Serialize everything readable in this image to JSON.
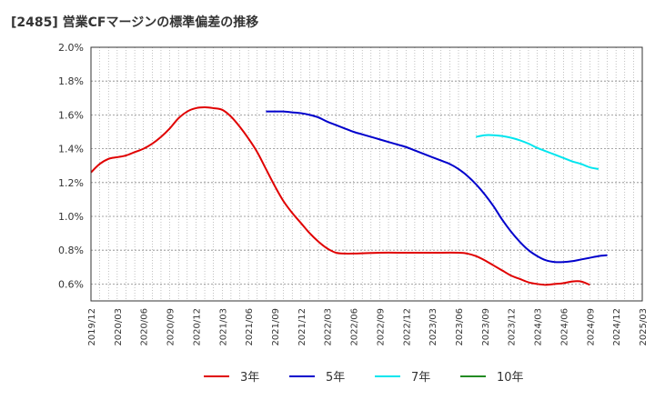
{
  "chart_data": {
    "type": "line",
    "title": "[2485]  営業CFマージンの標準偏差の推移",
    "xlabel": "",
    "ylabel": "",
    "ylim": [
      0.5,
      2.0
    ],
    "grid": true,
    "legend_position": "bottom",
    "y_ticks": [
      "0.6%",
      "0.8%",
      "1.0%",
      "1.2%",
      "1.4%",
      "1.6%",
      "1.8%",
      "2.0%"
    ],
    "x_ticks": [
      "2019/12",
      "2020/03",
      "2020/06",
      "2020/09",
      "2020/12",
      "2021/03",
      "2021/06",
      "2021/09",
      "2021/12",
      "2022/03",
      "2022/06",
      "2022/09",
      "2022/12",
      "2023/03",
      "2023/06",
      "2023/09",
      "2023/12",
      "2024/03",
      "2024/06",
      "2024/09",
      "2024/12",
      "2025/03"
    ],
    "series": [
      {
        "name": "3年",
        "color": "#e00000",
        "points": [
          [
            "2019/12",
            1.26
          ],
          [
            "2020/01",
            1.31
          ],
          [
            "2020/02",
            1.34
          ],
          [
            "2020/03",
            1.35
          ],
          [
            "2020/04",
            1.36
          ],
          [
            "2020/05",
            1.38
          ],
          [
            "2020/06",
            1.4
          ],
          [
            "2020/07",
            1.43
          ],
          [
            "2020/08",
            1.47
          ],
          [
            "2020/09",
            1.52
          ],
          [
            "2020/10",
            1.58
          ],
          [
            "2020/11",
            1.62
          ],
          [
            "2020/12",
            1.64
          ],
          [
            "2021/01",
            1.645
          ],
          [
            "2021/02",
            1.64
          ],
          [
            "2021/03",
            1.63
          ],
          [
            "2021/04",
            1.59
          ],
          [
            "2021/05",
            1.53
          ],
          [
            "2021/06",
            1.46
          ],
          [
            "2021/07",
            1.38
          ],
          [
            "2021/08",
            1.28
          ],
          [
            "2021/09",
            1.18
          ],
          [
            "2021/10",
            1.09
          ],
          [
            "2021/11",
            1.02
          ],
          [
            "2021/12",
            0.96
          ],
          [
            "2022/01",
            0.9
          ],
          [
            "2022/02",
            0.85
          ],
          [
            "2022/03",
            0.81
          ],
          [
            "2022/04",
            0.785
          ],
          [
            "2022/05",
            0.78
          ],
          [
            "2022/06",
            0.78
          ],
          [
            "2022/09",
            0.785
          ],
          [
            "2022/12",
            0.785
          ],
          [
            "2023/03",
            0.785
          ],
          [
            "2023/06",
            0.785
          ],
          [
            "2023/07",
            0.78
          ],
          [
            "2023/08",
            0.765
          ],
          [
            "2023/09",
            0.74
          ],
          [
            "2023/10",
            0.71
          ],
          [
            "2023/11",
            0.68
          ],
          [
            "2023/12",
            0.65
          ],
          [
            "2024/01",
            0.63
          ],
          [
            "2024/02",
            0.61
          ],
          [
            "2024/03",
            0.6
          ],
          [
            "2024/04",
            0.595
          ],
          [
            "2024/05",
            0.6
          ],
          [
            "2024/06",
            0.605
          ],
          [
            "2024/07",
            0.615
          ],
          [
            "2024/08",
            0.615
          ],
          [
            "2024/09",
            0.595
          ]
        ]
      },
      {
        "name": "5年",
        "color": "#0000cc",
        "points": [
          [
            "2021/08",
            1.62
          ],
          [
            "2021/09",
            1.62
          ],
          [
            "2021/10",
            1.62
          ],
          [
            "2021/11",
            1.615
          ],
          [
            "2021/12",
            1.61
          ],
          [
            "2022/01",
            1.6
          ],
          [
            "2022/02",
            1.585
          ],
          [
            "2022/03",
            1.56
          ],
          [
            "2022/04",
            1.54
          ],
          [
            "2022/05",
            1.52
          ],
          [
            "2022/06",
            1.5
          ],
          [
            "2022/07",
            1.485
          ],
          [
            "2022/08",
            1.47
          ],
          [
            "2022/09",
            1.455
          ],
          [
            "2022/10",
            1.44
          ],
          [
            "2022/11",
            1.425
          ],
          [
            "2022/12",
            1.41
          ],
          [
            "2023/01",
            1.39
          ],
          [
            "2023/02",
            1.37
          ],
          [
            "2023/03",
            1.35
          ],
          [
            "2023/04",
            1.33
          ],
          [
            "2023/05",
            1.31
          ],
          [
            "2023/06",
            1.28
          ],
          [
            "2023/07",
            1.24
          ],
          [
            "2023/08",
            1.19
          ],
          [
            "2023/09",
            1.13
          ],
          [
            "2023/10",
            1.06
          ],
          [
            "2023/11",
            0.98
          ],
          [
            "2023/12",
            0.91
          ],
          [
            "2024/01",
            0.85
          ],
          [
            "2024/02",
            0.8
          ],
          [
            "2024/03",
            0.765
          ],
          [
            "2024/04",
            0.74
          ],
          [
            "2024/05",
            0.73
          ],
          [
            "2024/06",
            0.73
          ],
          [
            "2024/07",
            0.735
          ],
          [
            "2024/08",
            0.745
          ],
          [
            "2024/09",
            0.755
          ],
          [
            "2024/10",
            0.765
          ],
          [
            "2024/11",
            0.77
          ]
        ]
      },
      {
        "name": "7年",
        "color": "#00e5ee",
        "points": [
          [
            "2023/08",
            1.47
          ],
          [
            "2023/09",
            1.48
          ],
          [
            "2023/10",
            1.48
          ],
          [
            "2023/11",
            1.475
          ],
          [
            "2023/12",
            1.465
          ],
          [
            "2024/01",
            1.45
          ],
          [
            "2024/02",
            1.43
          ],
          [
            "2024/03",
            1.405
          ],
          [
            "2024/04",
            1.385
          ],
          [
            "2024/05",
            1.365
          ],
          [
            "2024/06",
            1.345
          ],
          [
            "2024/07",
            1.325
          ],
          [
            "2024/08",
            1.31
          ],
          [
            "2024/09",
            1.29
          ],
          [
            "2024/10",
            1.28
          ]
        ]
      },
      {
        "name": "10年",
        "color": "#228b22",
        "points": []
      }
    ]
  }
}
